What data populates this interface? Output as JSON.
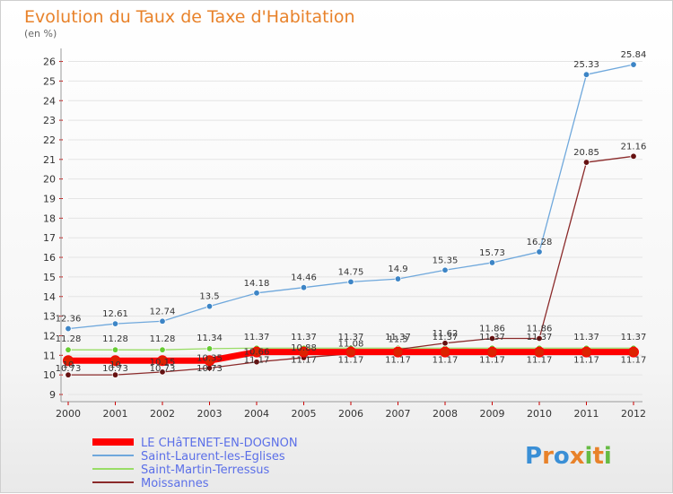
{
  "chart_data": {
    "type": "line",
    "title": "Evolution du Taux de Taxe d'Habitation",
    "subtitle": "(en %)",
    "x": [
      "2000",
      "2001",
      "2002",
      "2003",
      "2004",
      "2005",
      "2006",
      "2007",
      "2008",
      "2009",
      "2010",
      "2011",
      "2012"
    ],
    "ylim": [
      9,
      26.3
    ],
    "yticks": [
      9,
      10,
      11,
      12,
      13,
      14,
      15,
      16,
      17,
      18,
      19,
      20,
      21,
      22,
      23,
      24,
      25,
      26
    ],
    "legend_position": "bottom-left",
    "series": [
      {
        "name": "LE CHâTENET-EN-DOGNON",
        "color": "#ff0000",
        "marker_color": "#dd2200",
        "values": [
          10.73,
          10.73,
          10.73,
          10.73,
          11.17,
          11.17,
          11.17,
          11.17,
          11.17,
          11.17,
          11.17,
          11.17,
          11.17
        ],
        "labels": [
          "10.73",
          "10.73",
          "10.73",
          "10.73",
          "11.17",
          "11.17",
          "11.17",
          "11.17",
          "11.17",
          "11.17",
          "11.17",
          "11.17",
          "11.17"
        ]
      },
      {
        "name": "Saint-Laurent-les-Eglises",
        "color": "#6fa8dc",
        "marker_color": "#3d85c6",
        "values": [
          12.36,
          12.61,
          12.74,
          13.5,
          14.18,
          14.46,
          14.75,
          14.9,
          15.35,
          15.73,
          16.28,
          25.33,
          25.84
        ],
        "labels": [
          "12.36",
          "12.61",
          "12.74",
          "13.5",
          "14.18",
          "14.46",
          "14.75",
          "14.9",
          "15.35",
          "15.73",
          "16.28",
          "25.33",
          "25.84"
        ]
      },
      {
        "name": "Saint-Martin-Terressus",
        "color": "#99dd66",
        "marker_color": "#66cc33",
        "values": [
          11.28,
          11.28,
          11.28,
          11.34,
          11.37,
          11.37,
          11.37,
          11.37,
          11.37,
          11.37,
          11.37,
          11.37,
          11.37
        ],
        "labels": [
          "11.28",
          "11.28",
          "11.28",
          "11.34",
          "11.37",
          "11.37",
          "11.37",
          "11.37",
          "11.37",
          "11.37",
          "11.37",
          "11.37",
          "11.37"
        ]
      },
      {
        "name": "Moissannes",
        "color": "#8b2a2a",
        "marker_color": "#661111",
        "values": [
          10,
          10,
          10.15,
          10.35,
          10.66,
          10.88,
          11.08,
          11.3,
          11.62,
          11.86,
          11.86,
          20.85,
          21.16
        ],
        "labels": [
          "10",
          "10",
          "10.15",
          "10.35",
          "10.66",
          "10.88",
          "11.08",
          "11.3",
          "11.62",
          "11.86",
          "11.86",
          "20.85",
          "21.16"
        ]
      }
    ]
  },
  "brand": {
    "letters": [
      "P",
      "r",
      "o",
      "x",
      "i",
      "t",
      "i"
    ],
    "colors": [
      "#3a8fd6",
      "#e8822a",
      "#3a8fd6",
      "#e8822a",
      "#66bb44",
      "#e8822a",
      "#66bb44"
    ]
  }
}
